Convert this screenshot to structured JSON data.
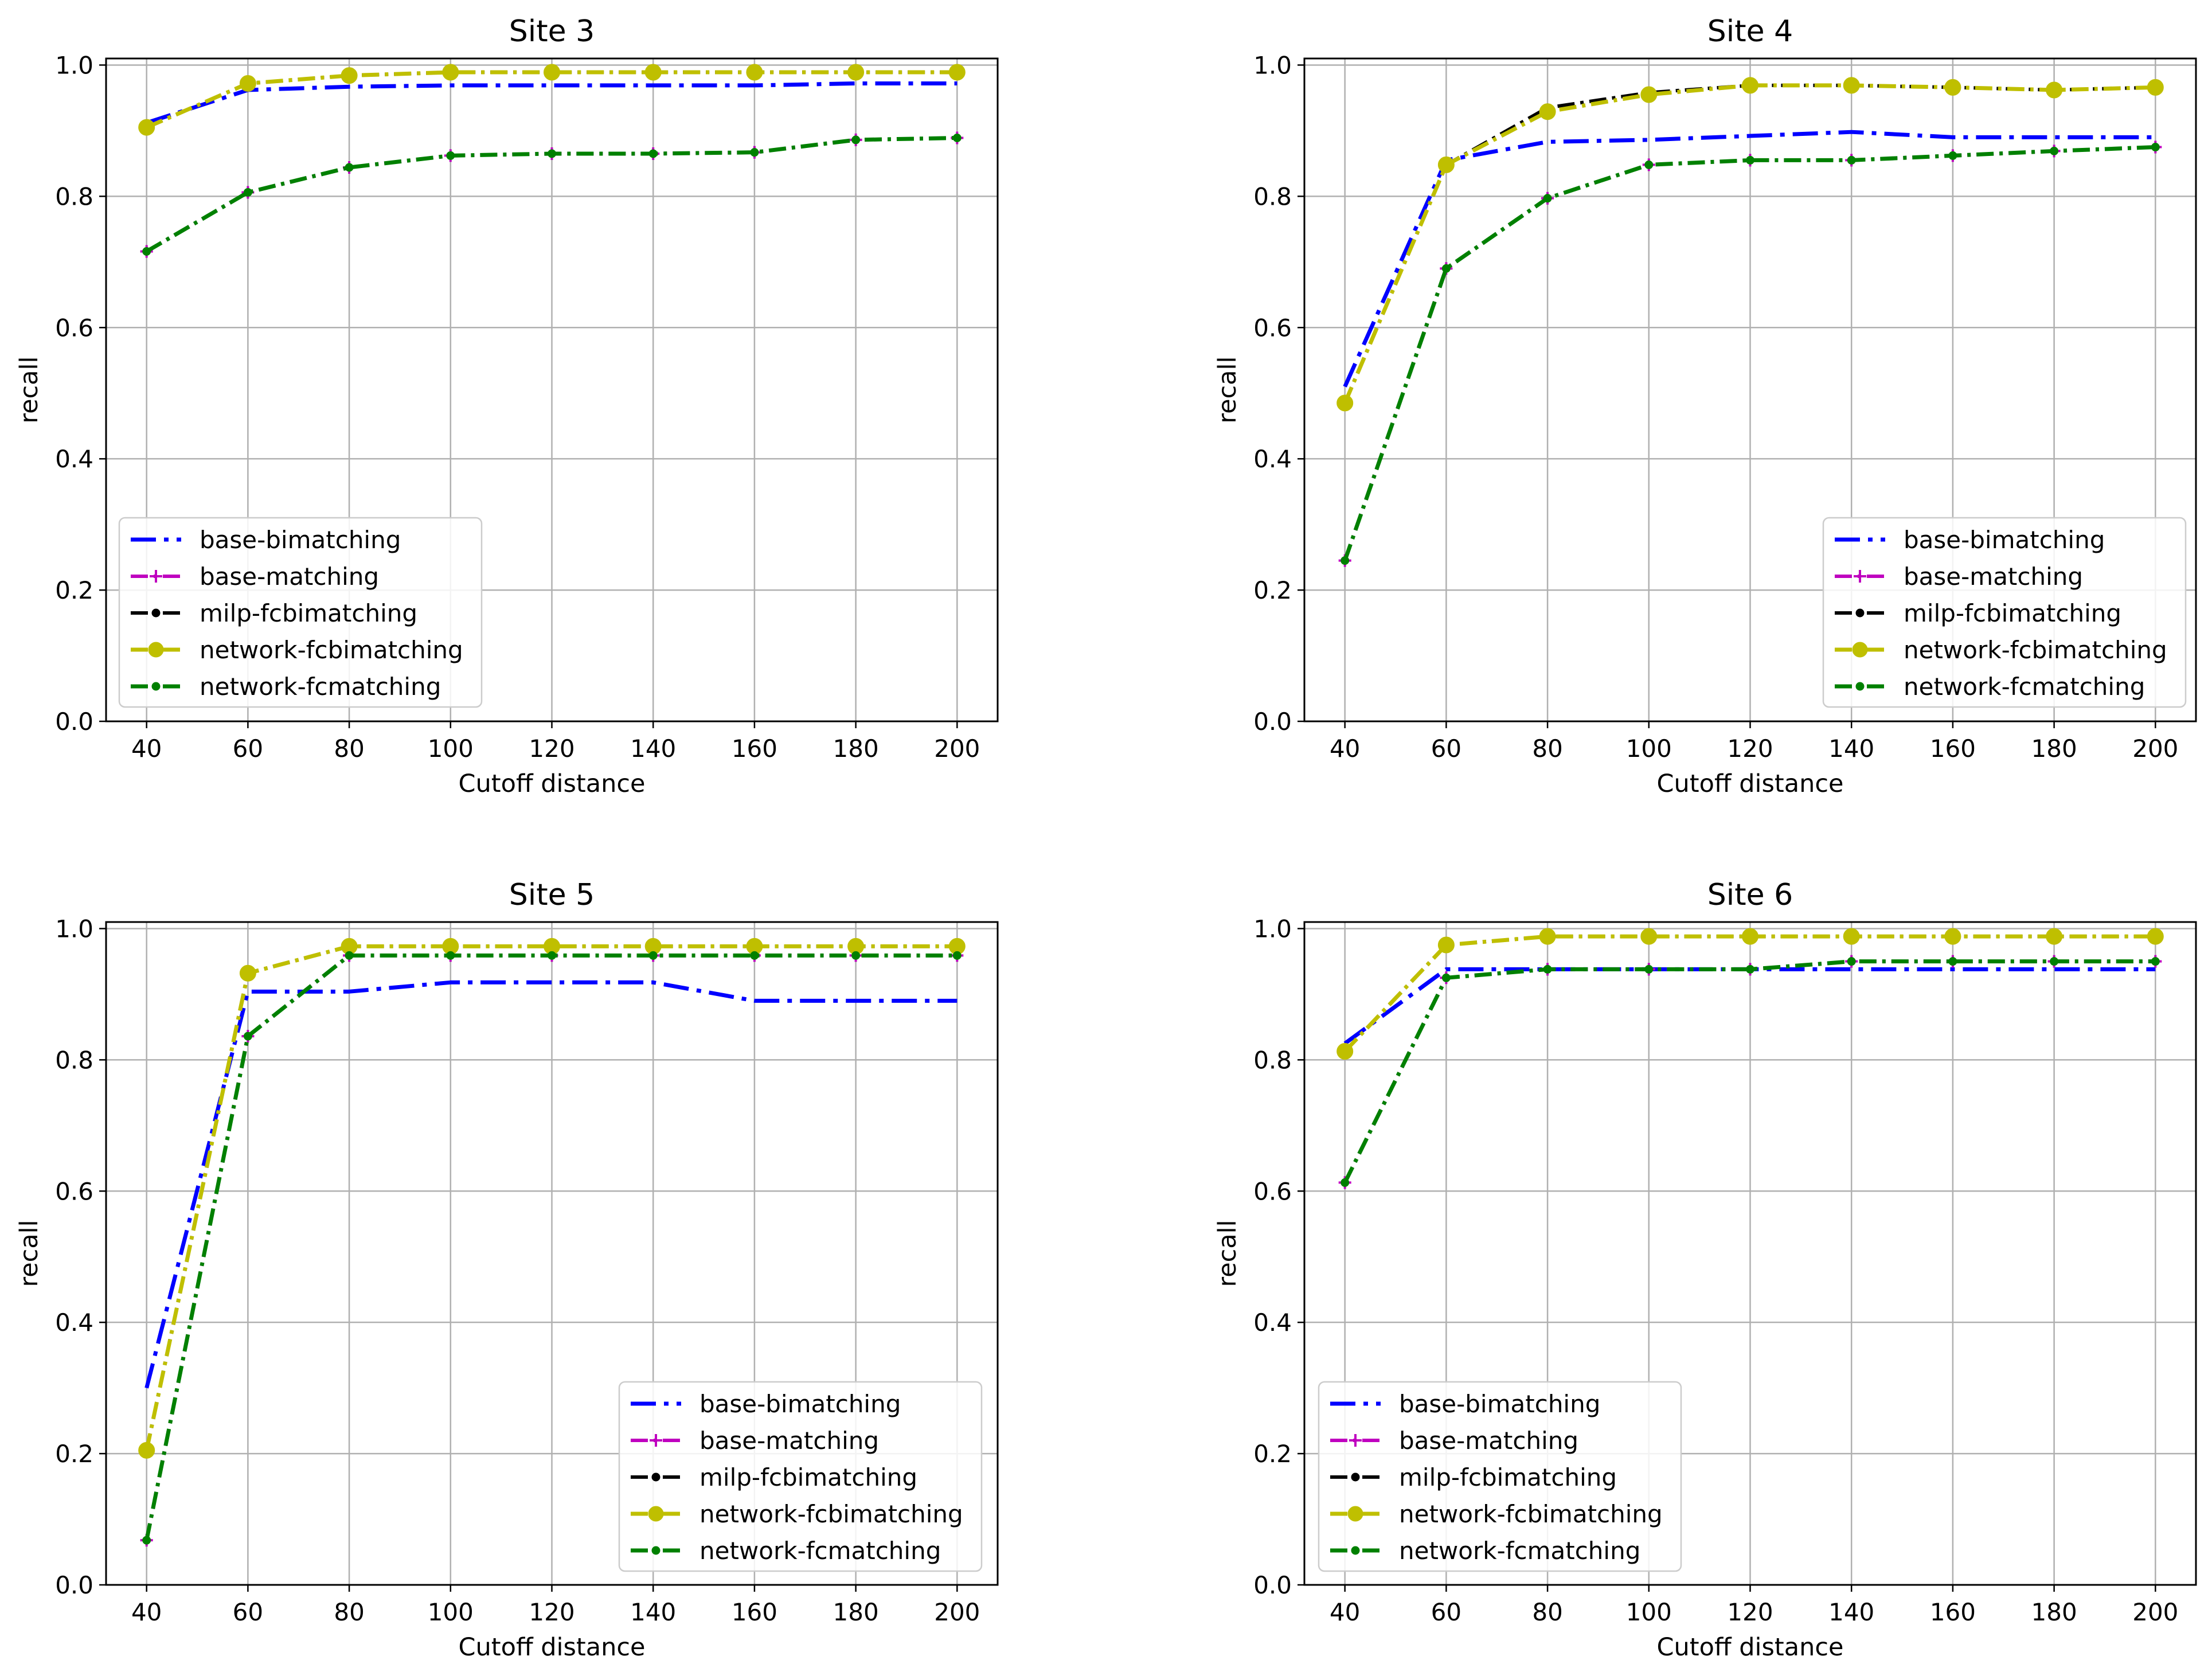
{
  "chart_data": [
    {
      "type": "line",
      "title": "Site 3",
      "xlabel": "Cutoff distance",
      "ylabel": "recall",
      "x": [
        40,
        60,
        80,
        100,
        120,
        140,
        160,
        180,
        200
      ],
      "xlim": [
        32,
        208
      ],
      "ylim": [
        0.0,
        1.01
      ],
      "xticks": [
        "40",
        "60",
        "80",
        "100",
        "120",
        "140",
        "160",
        "180",
        "200"
      ],
      "yticks": [
        "0.0",
        "0.2",
        "0.4",
        "0.6",
        "0.8",
        "1.0"
      ],
      "grid": true,
      "legend_position": "lower-left",
      "series": [
        {
          "name": "base-bimatching",
          "color": "#0000ff",
          "marker": "none",
          "values": [
            0.912,
            0.962,
            0.967,
            0.969,
            0.969,
            0.969,
            0.969,
            0.972,
            0.972
          ]
        },
        {
          "name": "base-matching",
          "color": "#bf00bf",
          "marker": "plus",
          "values": [
            0.716,
            0.806,
            0.844,
            0.862,
            0.865,
            0.865,
            0.867,
            0.886,
            0.889
          ]
        },
        {
          "name": "milp-fcbimatching",
          "color": "#000000",
          "marker": "dot",
          "values": [
            0.905,
            0.972,
            0.984,
            0.989,
            0.989,
            0.989,
            0.989,
            0.989,
            0.989
          ]
        },
        {
          "name": "network-fcbimatching",
          "color": "#bfbf00",
          "marker": "circle",
          "values": [
            0.905,
            0.972,
            0.984,
            0.989,
            0.989,
            0.989,
            0.989,
            0.989,
            0.989
          ]
        },
        {
          "name": "network-fcmatching",
          "color": "#008000",
          "marker": "dot",
          "values": [
            0.716,
            0.806,
            0.844,
            0.862,
            0.865,
            0.865,
            0.867,
            0.886,
            0.889
          ]
        }
      ]
    },
    {
      "type": "line",
      "title": "Site 4",
      "xlabel": "Cutoff distance",
      "ylabel": "recall",
      "x": [
        40,
        60,
        80,
        100,
        120,
        140,
        160,
        180,
        200
      ],
      "xlim": [
        32,
        208
      ],
      "ylim": [
        0.0,
        1.01
      ],
      "xticks": [
        "40",
        "60",
        "80",
        "100",
        "120",
        "140",
        "160",
        "180",
        "200"
      ],
      "yticks": [
        "0.0",
        "0.2",
        "0.4",
        "0.6",
        "0.8",
        "1.0"
      ],
      "grid": true,
      "legend_position": "lower-right",
      "series": [
        {
          "name": "base-bimatching",
          "color": "#0000ff",
          "marker": "none",
          "values": [
            0.51,
            0.855,
            0.883,
            0.886,
            0.892,
            0.898,
            0.89,
            0.89,
            0.89
          ]
        },
        {
          "name": "base-matching",
          "color": "#bf00bf",
          "marker": "plus",
          "values": [
            0.245,
            0.69,
            0.797,
            0.848,
            0.855,
            0.855,
            0.862,
            0.869,
            0.875
          ]
        },
        {
          "name": "milp-fcbimatching",
          "color": "#000000",
          "marker": "dot",
          "values": [
            0.485,
            0.848,
            0.935,
            0.958,
            0.969,
            0.969,
            0.966,
            0.962,
            0.966
          ]
        },
        {
          "name": "network-fcbimatching",
          "color": "#bfbf00",
          "marker": "circle",
          "values": [
            0.485,
            0.848,
            0.929,
            0.955,
            0.969,
            0.969,
            0.966,
            0.962,
            0.966
          ]
        },
        {
          "name": "network-fcmatching",
          "color": "#008000",
          "marker": "dot",
          "values": [
            0.245,
            0.69,
            0.797,
            0.848,
            0.855,
            0.855,
            0.862,
            0.869,
            0.875
          ]
        }
      ]
    },
    {
      "type": "line",
      "title": "Site 5",
      "xlabel": "Cutoff distance",
      "ylabel": "recall",
      "x": [
        40,
        60,
        80,
        100,
        120,
        140,
        160,
        180,
        200
      ],
      "xlim": [
        32,
        208
      ],
      "ylim": [
        0.0,
        1.01
      ],
      "xticks": [
        "40",
        "60",
        "80",
        "100",
        "120",
        "140",
        "160",
        "180",
        "200"
      ],
      "yticks": [
        "0.0",
        "0.2",
        "0.4",
        "0.6",
        "0.8",
        "1.0"
      ],
      "grid": true,
      "legend_position": "lower-right",
      "series": [
        {
          "name": "base-bimatching",
          "color": "#0000ff",
          "marker": "none",
          "values": [
            0.3,
            0.904,
            0.904,
            0.918,
            0.918,
            0.918,
            0.89,
            0.89,
            0.89
          ]
        },
        {
          "name": "base-matching",
          "color": "#bf00bf",
          "marker": "plus",
          "values": [
            0.068,
            0.836,
            0.959,
            0.959,
            0.959,
            0.959,
            0.959,
            0.959,
            0.959
          ]
        },
        {
          "name": "milp-fcbimatching",
          "color": "#000000",
          "marker": "dot",
          "values": [
            0.205,
            0.932,
            0.973,
            0.973,
            0.973,
            0.973,
            0.973,
            0.973,
            0.973
          ]
        },
        {
          "name": "network-fcbimatching",
          "color": "#bfbf00",
          "marker": "circle",
          "values": [
            0.205,
            0.932,
            0.973,
            0.973,
            0.973,
            0.973,
            0.973,
            0.973,
            0.973
          ]
        },
        {
          "name": "network-fcmatching",
          "color": "#008000",
          "marker": "dot",
          "values": [
            0.068,
            0.836,
            0.959,
            0.959,
            0.959,
            0.959,
            0.959,
            0.959,
            0.959
          ]
        }
      ]
    },
    {
      "type": "line",
      "title": "Site 6",
      "xlabel": "Cutoff distance",
      "ylabel": "recall",
      "x": [
        40,
        60,
        80,
        100,
        120,
        140,
        160,
        180,
        200
      ],
      "xlim": [
        32,
        208
      ],
      "ylim": [
        0.0,
        1.01
      ],
      "xticks": [
        "40",
        "60",
        "80",
        "100",
        "120",
        "140",
        "160",
        "180",
        "200"
      ],
      "yticks": [
        "0.0",
        "0.2",
        "0.4",
        "0.6",
        "0.8",
        "1.0"
      ],
      "grid": true,
      "legend_position": "lower-left",
      "series": [
        {
          "name": "base-bimatching",
          "color": "#0000ff",
          "marker": "none",
          "values": [
            0.825,
            0.938,
            0.938,
            0.938,
            0.938,
            0.938,
            0.938,
            0.938,
            0.938
          ]
        },
        {
          "name": "base-matching",
          "color": "#bf00bf",
          "marker": "plus",
          "values": [
            0.613,
            0.925,
            0.938,
            0.938,
            0.938,
            0.95,
            0.95,
            0.95,
            0.95
          ]
        },
        {
          "name": "milp-fcbimatching",
          "color": "#000000",
          "marker": "dot",
          "values": [
            0.813,
            0.975,
            0.988,
            0.988,
            0.988,
            0.988,
            0.988,
            0.988,
            0.988
          ]
        },
        {
          "name": "network-fcbimatching",
          "color": "#bfbf00",
          "marker": "circle",
          "values": [
            0.813,
            0.975,
            0.988,
            0.988,
            0.988,
            0.988,
            0.988,
            0.988,
            0.988
          ]
        },
        {
          "name": "network-fcmatching",
          "color": "#008000",
          "marker": "dot",
          "values": [
            0.613,
            0.925,
            0.938,
            0.938,
            0.938,
            0.95,
            0.95,
            0.95,
            0.95
          ]
        }
      ]
    }
  ]
}
